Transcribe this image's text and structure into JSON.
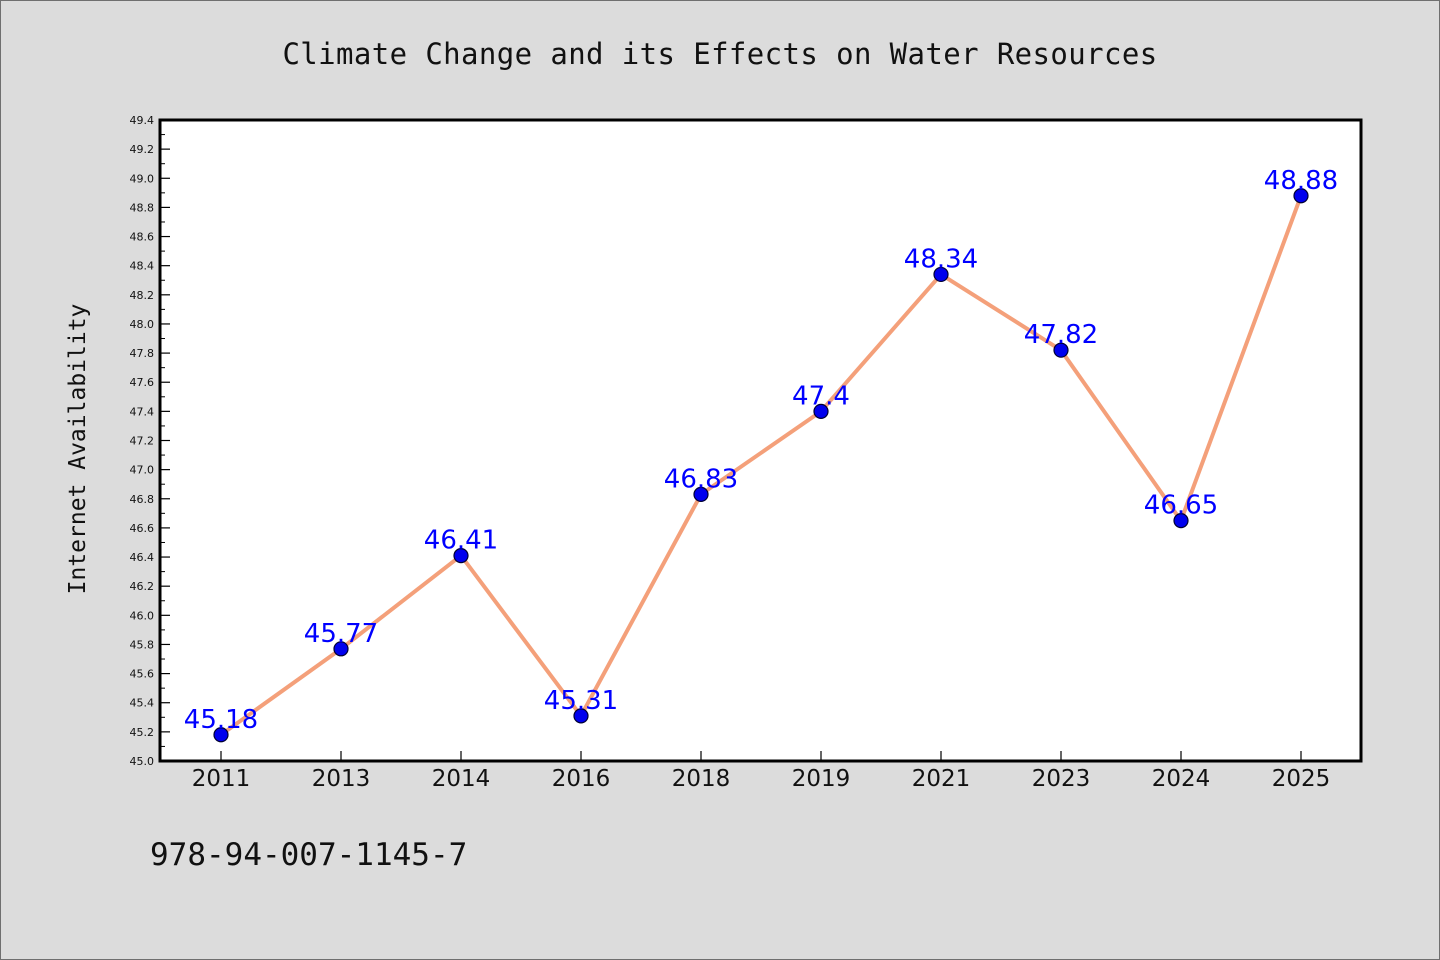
{
  "colors": {
    "background": "#dcdcdc",
    "plot_background": "#ffffff",
    "line": "#f4a07a",
    "marker": "#0000ee",
    "data_label": "#0000ff",
    "text": "#111111"
  },
  "footer_text": "978-94-007-1145-7",
  "chart_data": {
    "type": "line",
    "title": "Climate Change and its Effects on Water Resources",
    "xlabel": "",
    "ylabel": "Internet Availability",
    "categories": [
      "2011",
      "2013",
      "2014",
      "2016",
      "2018",
      "2019",
      "2021",
      "2023",
      "2024",
      "2025"
    ],
    "series": [
      {
        "values": [
          45.18,
          45.77,
          46.41,
          45.31,
          46.83,
          47.4,
          48.34,
          47.82,
          46.65,
          48.88
        ],
        "data_labels": [
          "45.18",
          "45.77",
          "46.41",
          "45.31",
          "46.83",
          "47.4",
          "48.34",
          "47.82",
          "46.65",
          "48.88"
        ]
      }
    ],
    "ylim": [
      45.0,
      49.4
    ],
    "yticks": [
      "45.0",
      "45.2",
      "45.4",
      "45.6",
      "45.8",
      "46.0",
      "46.2",
      "46.4",
      "46.6",
      "46.8",
      "47.0",
      "47.2",
      "47.4",
      "47.6",
      "47.8",
      "48.0",
      "48.2",
      "48.4",
      "48.6",
      "48.8",
      "49.0",
      "49.2",
      "49.4"
    ],
    "grid": false,
    "legend": "none",
    "marker": "circle"
  }
}
